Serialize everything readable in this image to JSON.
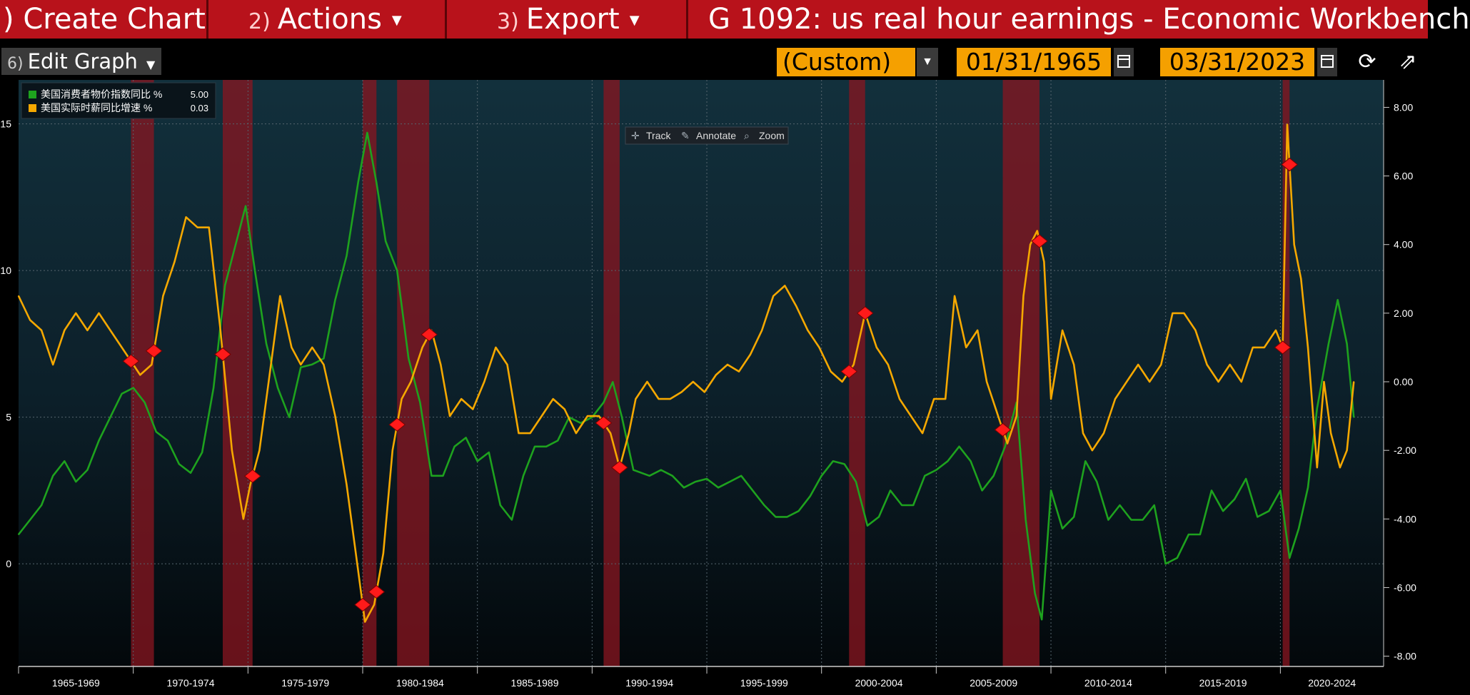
{
  "toolbar": {
    "create_chart": {
      "num": "",
      "label": ") Create Chart"
    },
    "actions": {
      "num": "2)",
      "label": "Actions"
    },
    "export": {
      "num": "3)",
      "label": "Export"
    },
    "window_title": "G 1092: us real hour earnings - Economic Workbench"
  },
  "controls": {
    "edit_graph": {
      "num": "6)",
      "label": "Edit Graph"
    },
    "period": "(Custom)",
    "start_date": "01/31/1965",
    "end_date": "03/31/2023"
  },
  "chart_tools": {
    "track": "Track",
    "annotate": "Annotate",
    "zoom": "Zoom"
  },
  "chart_data": {
    "type": "line",
    "x_tick_labels": [
      "1965-1969",
      "1970-1974",
      "1975-1979",
      "1980-1984",
      "1985-1989",
      "1990-1994",
      "1995-1999",
      "2000-2004",
      "2005-2009",
      "2010-2014",
      "2015-2019",
      "2020-2024"
    ],
    "x_range": [
      1965.0,
      2024.5
    ],
    "y_left": {
      "ticks": [
        0,
        5,
        10,
        15
      ],
      "range": [
        -3.5,
        16.5
      ]
    },
    "y_right": {
      "ticks": [
        "8.00",
        "6.00",
        "4.00",
        "2.00",
        "0.00",
        "-2.00",
        "-4.00",
        "-6.00",
        "-8.00"
      ],
      "range": [
        -8.3,
        8.8
      ]
    },
    "legend_position": "top-left",
    "series": [
      {
        "name": "美国消费者物价指数同比 %",
        "last_value": "5.00",
        "color": "#1ea21e",
        "axis": "left",
        "points": [
          [
            1965.0,
            1.0
          ],
          [
            1965.5,
            1.5
          ],
          [
            1966.0,
            2.0
          ],
          [
            1966.5,
            3.0
          ],
          [
            1967.0,
            3.5
          ],
          [
            1967.5,
            2.8
          ],
          [
            1968.0,
            3.2
          ],
          [
            1968.5,
            4.2
          ],
          [
            1969.0,
            5.0
          ],
          [
            1969.5,
            5.8
          ],
          [
            1970.0,
            6.0
          ],
          [
            1970.5,
            5.5
          ],
          [
            1971.0,
            4.5
          ],
          [
            1971.5,
            4.2
          ],
          [
            1972.0,
            3.4
          ],
          [
            1972.5,
            3.1
          ],
          [
            1973.0,
            3.8
          ],
          [
            1973.5,
            6.0
          ],
          [
            1974.0,
            9.5
          ],
          [
            1974.5,
            11.0
          ],
          [
            1974.9,
            12.2
          ],
          [
            1975.3,
            10.0
          ],
          [
            1975.8,
            7.5
          ],
          [
            1976.3,
            6.0
          ],
          [
            1976.8,
            5.0
          ],
          [
            1977.3,
            6.7
          ],
          [
            1977.8,
            6.8
          ],
          [
            1978.3,
            7.0
          ],
          [
            1978.8,
            9.0
          ],
          [
            1979.3,
            10.5
          ],
          [
            1979.8,
            13.0
          ],
          [
            1980.2,
            14.7
          ],
          [
            1980.6,
            13.0
          ],
          [
            1981.0,
            11.0
          ],
          [
            1981.5,
            10.0
          ],
          [
            1982.0,
            7.0
          ],
          [
            1982.5,
            5.5
          ],
          [
            1983.0,
            3.0
          ],
          [
            1983.5,
            3.0
          ],
          [
            1984.0,
            4.0
          ],
          [
            1984.5,
            4.3
          ],
          [
            1985.0,
            3.5
          ],
          [
            1985.5,
            3.8
          ],
          [
            1986.0,
            2.0
          ],
          [
            1986.5,
            1.5
          ],
          [
            1987.0,
            3.0
          ],
          [
            1987.5,
            4.0
          ],
          [
            1988.0,
            4.0
          ],
          [
            1988.5,
            4.2
          ],
          [
            1989.0,
            5.0
          ],
          [
            1989.5,
            4.8
          ],
          [
            1990.0,
            5.0
          ],
          [
            1990.5,
            5.5
          ],
          [
            1990.9,
            6.2
          ],
          [
            1991.3,
            5.0
          ],
          [
            1991.8,
            3.2
          ],
          [
            1992.5,
            3.0
          ],
          [
            1993.0,
            3.2
          ],
          [
            1993.5,
            3.0
          ],
          [
            1994.0,
            2.6
          ],
          [
            1994.5,
            2.8
          ],
          [
            1995.0,
            2.9
          ],
          [
            1995.5,
            2.6
          ],
          [
            1996.0,
            2.8
          ],
          [
            1996.5,
            3.0
          ],
          [
            1997.0,
            2.5
          ],
          [
            1997.5,
            2.0
          ],
          [
            1998.0,
            1.6
          ],
          [
            1998.5,
            1.6
          ],
          [
            1999.0,
            1.8
          ],
          [
            1999.5,
            2.3
          ],
          [
            2000.0,
            3.0
          ],
          [
            2000.5,
            3.5
          ],
          [
            2001.0,
            3.4
          ],
          [
            2001.5,
            2.8
          ],
          [
            2002.0,
            1.3
          ],
          [
            2002.5,
            1.6
          ],
          [
            2003.0,
            2.5
          ],
          [
            2003.5,
            2.0
          ],
          [
            2004.0,
            2.0
          ],
          [
            2004.5,
            3.0
          ],
          [
            2005.0,
            3.2
          ],
          [
            2005.5,
            3.5
          ],
          [
            2006.0,
            4.0
          ],
          [
            2006.5,
            3.5
          ],
          [
            2007.0,
            2.5
          ],
          [
            2007.5,
            3.0
          ],
          [
            2008.0,
            4.0
          ],
          [
            2008.5,
            5.5
          ],
          [
            2008.9,
            1.5
          ],
          [
            2009.3,
            -1.0
          ],
          [
            2009.6,
            -1.9
          ],
          [
            2010.0,
            2.5
          ],
          [
            2010.5,
            1.2
          ],
          [
            2011.0,
            1.6
          ],
          [
            2011.5,
            3.5
          ],
          [
            2012.0,
            2.8
          ],
          [
            2012.5,
            1.5
          ],
          [
            2013.0,
            2.0
          ],
          [
            2013.5,
            1.5
          ],
          [
            2014.0,
            1.5
          ],
          [
            2014.5,
            2.0
          ],
          [
            2015.0,
            0.0
          ],
          [
            2015.5,
            0.2
          ],
          [
            2016.0,
            1.0
          ],
          [
            2016.5,
            1.0
          ],
          [
            2017.0,
            2.5
          ],
          [
            2017.5,
            1.8
          ],
          [
            2018.0,
            2.2
          ],
          [
            2018.5,
            2.9
          ],
          [
            2019.0,
            1.6
          ],
          [
            2019.5,
            1.8
          ],
          [
            2020.0,
            2.5
          ],
          [
            2020.4,
            0.2
          ],
          [
            2020.8,
            1.2
          ],
          [
            2021.2,
            2.6
          ],
          [
            2021.6,
            5.3
          ],
          [
            2022.1,
            7.5
          ],
          [
            2022.5,
            9.0
          ],
          [
            2022.9,
            7.5
          ],
          [
            2023.2,
            5.0
          ]
        ]
      },
      {
        "name": "美国实际时薪同比增速 %",
        "last_value": "0.03",
        "color": "#f5a800",
        "axis": "right",
        "points": [
          [
            1965.0,
            2.5
          ],
          [
            1965.5,
            1.8
          ],
          [
            1966.0,
            1.5
          ],
          [
            1966.5,
            0.5
          ],
          [
            1967.0,
            1.5
          ],
          [
            1967.5,
            2.0
          ],
          [
            1968.0,
            1.5
          ],
          [
            1968.5,
            2.0
          ],
          [
            1969.0,
            1.5
          ],
          [
            1969.5,
            1.0
          ],
          [
            1970.0,
            0.5
          ],
          [
            1970.3,
            0.2
          ],
          [
            1970.8,
            0.5
          ],
          [
            1971.3,
            2.5
          ],
          [
            1971.8,
            3.5
          ],
          [
            1972.3,
            4.8
          ],
          [
            1972.8,
            4.5
          ],
          [
            1973.3,
            4.5
          ],
          [
            1973.8,
            1.5
          ],
          [
            1974.3,
            -2.0
          ],
          [
            1974.8,
            -4.0
          ],
          [
            1975.1,
            -3.0
          ],
          [
            1975.5,
            -2.0
          ],
          [
            1975.9,
            0.0
          ],
          [
            1976.4,
            2.5
          ],
          [
            1976.9,
            1.0
          ],
          [
            1977.3,
            0.5
          ],
          [
            1977.8,
            1.0
          ],
          [
            1978.3,
            0.5
          ],
          [
            1978.8,
            -1.0
          ],
          [
            1979.3,
            -3.0
          ],
          [
            1979.8,
            -5.5
          ],
          [
            1980.1,
            -7.0
          ],
          [
            1980.5,
            -6.5
          ],
          [
            1980.9,
            -5.0
          ],
          [
            1981.3,
            -2.0
          ],
          [
            1981.7,
            -0.5
          ],
          [
            1982.1,
            0.0
          ],
          [
            1982.6,
            1.0
          ],
          [
            1983.0,
            1.5
          ],
          [
            1983.4,
            0.5
          ],
          [
            1983.8,
            -1.0
          ],
          [
            1984.3,
            -0.5
          ],
          [
            1984.8,
            -0.8
          ],
          [
            1985.3,
            0.0
          ],
          [
            1985.8,
            1.0
          ],
          [
            1986.3,
            0.5
          ],
          [
            1986.8,
            -1.5
          ],
          [
            1987.3,
            -1.5
          ],
          [
            1987.8,
            -1.0
          ],
          [
            1988.3,
            -0.5
          ],
          [
            1988.8,
            -0.8
          ],
          [
            1989.3,
            -1.5
          ],
          [
            1989.8,
            -1.0
          ],
          [
            1990.3,
            -1.0
          ],
          [
            1990.8,
            -1.5
          ],
          [
            1991.2,
            -2.5
          ],
          [
            1991.6,
            -1.5
          ],
          [
            1991.9,
            -0.5
          ],
          [
            1992.4,
            0.0
          ],
          [
            1992.9,
            -0.5
          ],
          [
            1993.4,
            -0.5
          ],
          [
            1993.9,
            -0.3
          ],
          [
            1994.4,
            0.0
          ],
          [
            1994.9,
            -0.3
          ],
          [
            1995.4,
            0.2
          ],
          [
            1995.9,
            0.5
          ],
          [
            1996.4,
            0.3
          ],
          [
            1996.9,
            0.8
          ],
          [
            1997.4,
            1.5
          ],
          [
            1997.9,
            2.5
          ],
          [
            1998.4,
            2.8
          ],
          [
            1998.9,
            2.2
          ],
          [
            1999.4,
            1.5
          ],
          [
            1999.9,
            1.0
          ],
          [
            2000.4,
            0.3
          ],
          [
            2000.9,
            0.0
          ],
          [
            2001.4,
            0.5
          ],
          [
            2001.9,
            2.0
          ],
          [
            2002.4,
            1.0
          ],
          [
            2002.9,
            0.5
          ],
          [
            2003.4,
            -0.5
          ],
          [
            2003.9,
            -1.0
          ],
          [
            2004.4,
            -1.5
          ],
          [
            2004.9,
            -0.5
          ],
          [
            2005.4,
            -0.5
          ],
          [
            2005.8,
            2.5
          ],
          [
            2006.3,
            1.0
          ],
          [
            2006.8,
            1.5
          ],
          [
            2007.2,
            0.0
          ],
          [
            2007.7,
            -1.0
          ],
          [
            2008.1,
            -1.8
          ],
          [
            2008.5,
            -1.0
          ],
          [
            2008.8,
            2.5
          ],
          [
            2009.1,
            4.0
          ],
          [
            2009.4,
            4.4
          ],
          [
            2009.7,
            3.5
          ],
          [
            2010.0,
            -0.5
          ],
          [
            2010.5,
            1.5
          ],
          [
            2011.0,
            0.5
          ],
          [
            2011.4,
            -1.5
          ],
          [
            2011.8,
            -2.0
          ],
          [
            2012.3,
            -1.5
          ],
          [
            2012.8,
            -0.5
          ],
          [
            2013.3,
            0.0
          ],
          [
            2013.8,
            0.5
          ],
          [
            2014.3,
            0.0
          ],
          [
            2014.8,
            0.5
          ],
          [
            2015.3,
            2.0
          ],
          [
            2015.8,
            2.0
          ],
          [
            2016.3,
            1.5
          ],
          [
            2016.8,
            0.5
          ],
          [
            2017.3,
            0.0
          ],
          [
            2017.8,
            0.5
          ],
          [
            2018.3,
            0.0
          ],
          [
            2018.8,
            1.0
          ],
          [
            2019.3,
            1.0
          ],
          [
            2019.8,
            1.5
          ],
          [
            2020.1,
            1.0
          ],
          [
            2020.3,
            7.5
          ],
          [
            2020.6,
            4.0
          ],
          [
            2020.9,
            3.0
          ],
          [
            2021.2,
            1.0
          ],
          [
            2021.6,
            -2.5
          ],
          [
            2021.9,
            0.0
          ],
          [
            2022.2,
            -1.5
          ],
          [
            2022.6,
            -2.5
          ],
          [
            2022.9,
            -2.0
          ],
          [
            2023.2,
            0.0
          ]
        ]
      }
    ],
    "recessions": [
      [
        1969.9,
        1970.9
      ],
      [
        1973.9,
        1975.2
      ],
      [
        1980.0,
        1980.6
      ],
      [
        1981.5,
        1982.9
      ],
      [
        1990.5,
        1991.2
      ],
      [
        2001.2,
        2001.9
      ],
      [
        2007.9,
        2009.5
      ],
      [
        2020.1,
        2020.4
      ]
    ]
  },
  "colors": {
    "recession": "#8a1520",
    "cpi": "#1ea21e",
    "earnings": "#f5a800",
    "marker": "#ff1a1a"
  }
}
